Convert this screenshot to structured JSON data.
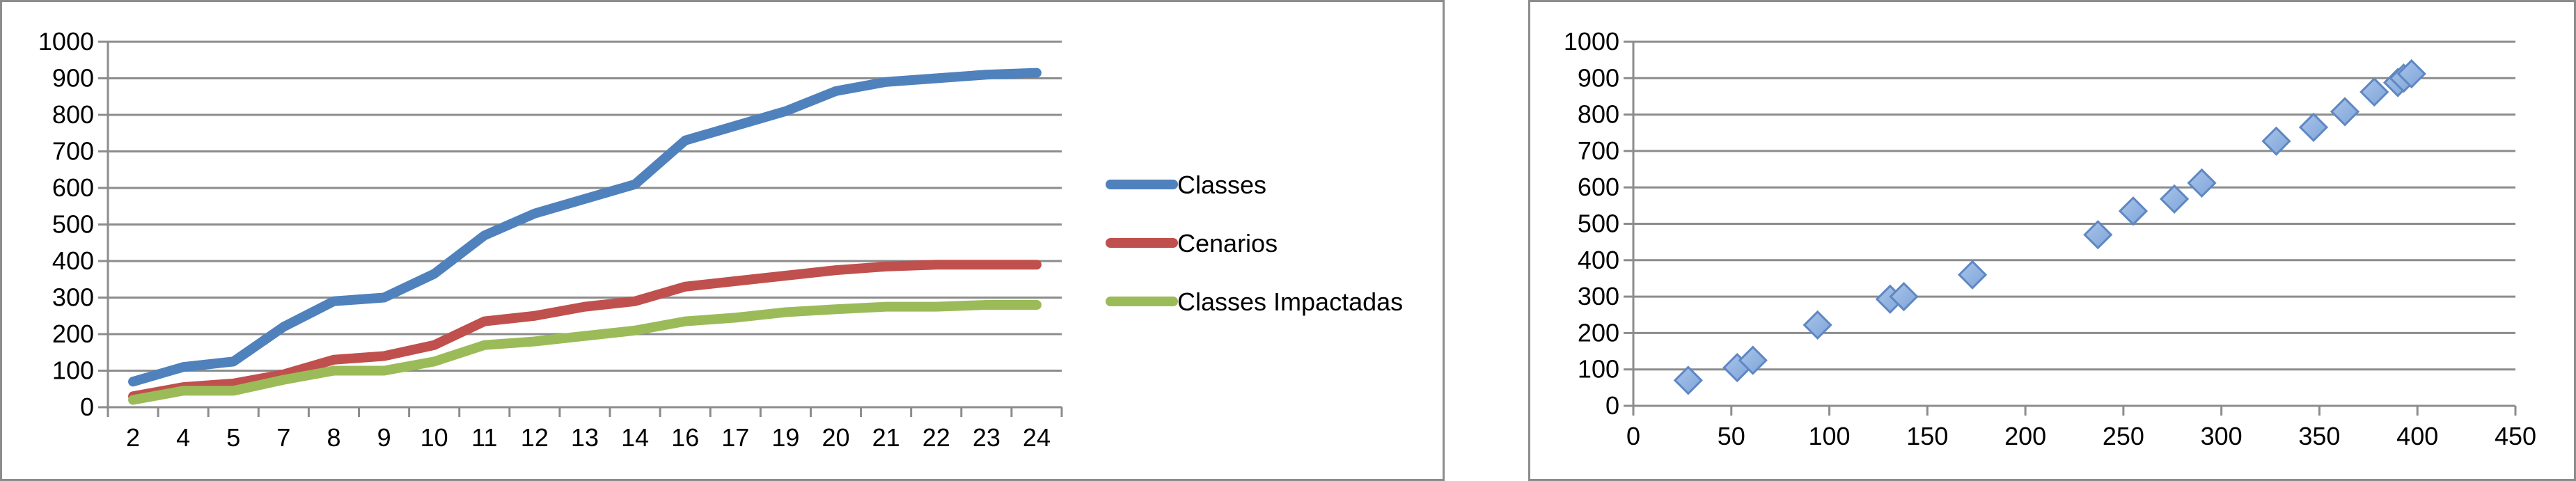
{
  "chart_data": [
    {
      "type": "line",
      "title": "",
      "xlabel": "",
      "ylabel": "",
      "categories": [
        "2",
        "4",
        "5",
        "7",
        "8",
        "9",
        "10",
        "11",
        "12",
        "13",
        "14",
        "16",
        "17",
        "19",
        "20",
        "21",
        "22",
        "23",
        "24"
      ],
      "ylim": [
        0,
        1000
      ],
      "yticks": [
        0,
        100,
        200,
        300,
        400,
        500,
        600,
        700,
        800,
        900,
        1000
      ],
      "grid": true,
      "legend_position": "right",
      "series": [
        {
          "name": "Classes",
          "color": "#4f81bd",
          "values": [
            70,
            110,
            125,
            220,
            290,
            300,
            365,
            470,
            530,
            570,
            610,
            730,
            770,
            810,
            865,
            890,
            900,
            910,
            915
          ]
        },
        {
          "name": "Cenarios",
          "color": "#c0504d",
          "values": [
            30,
            55,
            65,
            90,
            130,
            140,
            170,
            235,
            250,
            275,
            290,
            330,
            345,
            360,
            375,
            385,
            390,
            390,
            390
          ]
        },
        {
          "name": "Classes Impactadas",
          "color": "#9bbb59",
          "values": [
            20,
            45,
            45,
            75,
            100,
            100,
            125,
            170,
            180,
            195,
            210,
            235,
            245,
            260,
            268,
            275,
            275,
            280,
            280
          ]
        }
      ]
    },
    {
      "type": "scatter",
      "title": "",
      "xlabel": "",
      "ylabel": "",
      "xlim": [
        0,
        450
      ],
      "ylim": [
        0,
        1000
      ],
      "xticks": [
        0,
        50,
        100,
        150,
        200,
        250,
        300,
        350,
        400,
        450
      ],
      "yticks": [
        0,
        100,
        200,
        300,
        400,
        500,
        600,
        700,
        800,
        900,
        1000
      ],
      "grid": true,
      "marker_color": "#7ea5d9",
      "points": [
        [
          28,
          70
        ],
        [
          53,
          105
        ],
        [
          61,
          125
        ],
        [
          94,
          222
        ],
        [
          131,
          293
        ],
        [
          138,
          300
        ],
        [
          173,
          360
        ],
        [
          237,
          470
        ],
        [
          255,
          535
        ],
        [
          276,
          568
        ],
        [
          290,
          612
        ],
        [
          328,
          727
        ],
        [
          347,
          765
        ],
        [
          363,
          808
        ],
        [
          378,
          862
        ],
        [
          390,
          888
        ],
        [
          393,
          900
        ],
        [
          397,
          912
        ]
      ]
    }
  ]
}
